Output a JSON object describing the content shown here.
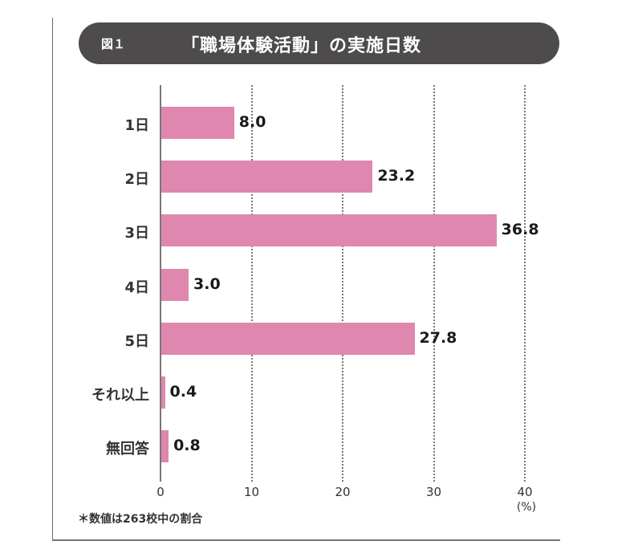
{
  "header": {
    "figure_label": "図１",
    "title": "「職場体験活動」の実施日数"
  },
  "footnote": "＊数値は263校中の割合",
  "unit_label": "(%)",
  "colors": {
    "bar": "#df87ae",
    "title_bg": "#4d4b4c"
  },
  "chart_data": {
    "type": "bar",
    "orientation": "horizontal",
    "title": "「職場体験活動」の実施日数",
    "categories": [
      "1日",
      "2日",
      "3日",
      "4日",
      "5日",
      "それ以上",
      "無回答"
    ],
    "values": [
      8.0,
      23.2,
      36.8,
      3.0,
      27.8,
      0.4,
      0.8
    ],
    "value_labels": [
      "8.0",
      "23.2",
      "36.8",
      "3.0",
      "27.8",
      "0.4",
      "0.8"
    ],
    "xlabel": "(%)",
    "ylabel": "",
    "xlim": [
      0,
      40
    ],
    "x_ticks": [
      "0",
      "10",
      "20",
      "30",
      "40"
    ],
    "grid": "vertical dotted",
    "legend": null,
    "annotation": "＊数値は263校中の割合"
  }
}
